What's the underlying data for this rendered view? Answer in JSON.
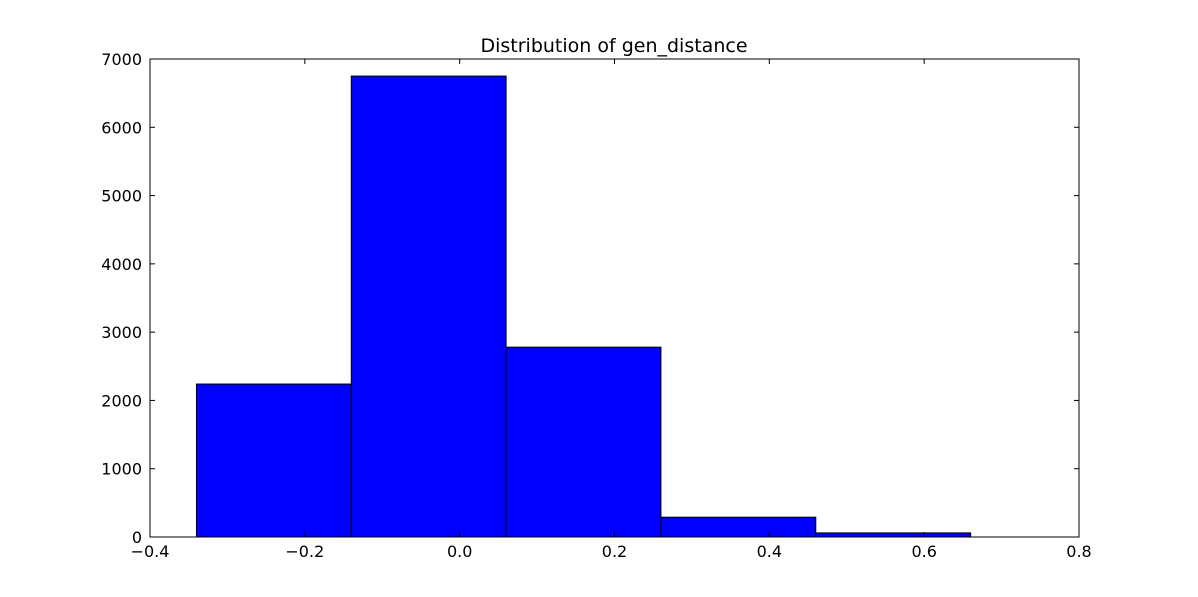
{
  "chart_data": {
    "type": "bar",
    "title": "Distribution of gen_distance",
    "xlabel": "",
    "ylabel": "",
    "xlim": [
      -0.4,
      0.8
    ],
    "ylim": [
      0,
      7000
    ],
    "bar_color": "#0000ff",
    "bins": [
      {
        "x0": -0.34,
        "x1": -0.14,
        "value": 2240
      },
      {
        "x0": -0.14,
        "x1": 0.06,
        "value": 6750
      },
      {
        "x0": 0.06,
        "x1": 0.26,
        "value": 2780
      },
      {
        "x0": 0.26,
        "x1": 0.46,
        "value": 290
      },
      {
        "x0": 0.46,
        "x1": 0.66,
        "value": 60
      }
    ],
    "x_ticks": [
      "−0.4",
      "−0.2",
      "0.0",
      "0.2",
      "0.4",
      "0.6",
      "0.8"
    ],
    "y_ticks": [
      "0",
      "1000",
      "2000",
      "3000",
      "4000",
      "5000",
      "6000",
      "7000"
    ],
    "grid": false,
    "legend": "none"
  }
}
